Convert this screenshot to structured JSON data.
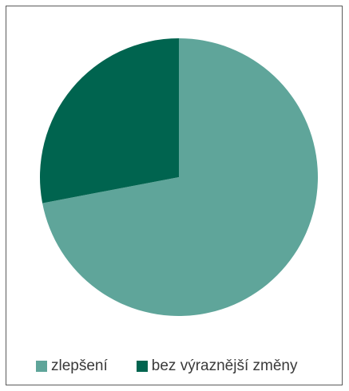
{
  "chart_data": {
    "type": "pie",
    "title": "",
    "slices": [
      {
        "label": "zlepšení",
        "value": 72,
        "color": "#5fa59a"
      },
      {
        "label": "bez výraznější změny",
        "value": 28,
        "color": "#00644f"
      }
    ],
    "start_angle_deg": 0,
    "direction": "clockwise",
    "legend_position": "bottom"
  },
  "legend": {
    "items": [
      {
        "label": "zlepšení",
        "color": "#5fa59a"
      },
      {
        "label": "bez výraznější změny",
        "color": "#00644f"
      }
    ]
  }
}
